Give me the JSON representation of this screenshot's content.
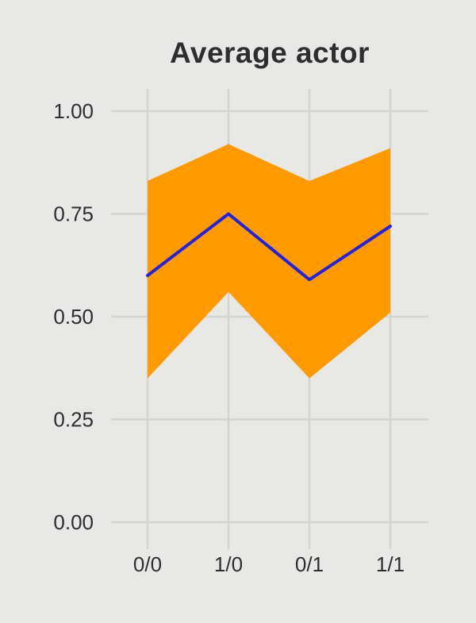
{
  "colors": {
    "background": "#e8e8e6",
    "grid": "#d3d3d1",
    "ribbon": "#ff9a00",
    "line": "#2323dc",
    "text": "#2e2e2e"
  },
  "chart_data": {
    "type": "line",
    "title": "Average actor",
    "categories": [
      "0/0",
      "1/0",
      "0/1",
      "1/1"
    ],
    "series": [
      {
        "name": "mean",
        "values": [
          0.6,
          0.75,
          0.59,
          0.72
        ]
      },
      {
        "name": "ribbon_upper",
        "values": [
          0.83,
          0.92,
          0.83,
          0.91
        ]
      },
      {
        "name": "ribbon_lower",
        "values": [
          0.35,
          0.56,
          0.35,
          0.51
        ]
      }
    ],
    "ytick_labels": [
      "0.00",
      "0.25",
      "0.50",
      "0.75",
      "1.00"
    ],
    "yticks": [
      0.0,
      0.25,
      0.5,
      0.75,
      1.0
    ],
    "ylim": [
      0,
      1
    ],
    "grid": true,
    "legend": "none",
    "xlabel": "",
    "ylabel": ""
  }
}
